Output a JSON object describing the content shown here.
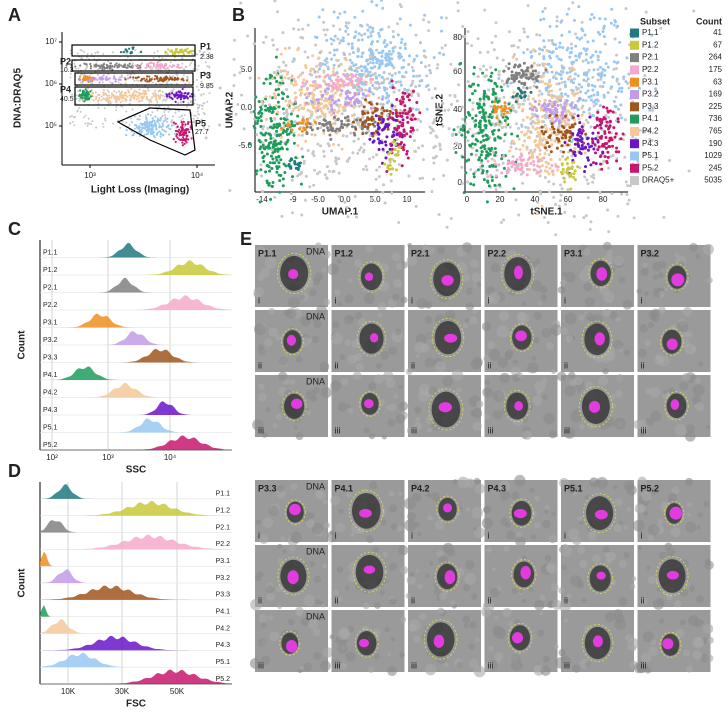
{
  "panelA": {
    "label": "A",
    "ylabel": "DNA:DRAQ5",
    "xlabel": "Light Loss (Imaging)",
    "yticks": [
      "10⁷",
      "10⁶",
      "10⁵"
    ],
    "xticks": [
      "10³",
      "10⁴"
    ],
    "gates": [
      {
        "name": "P1",
        "value": "2.38"
      },
      {
        "name": "P2",
        "value": "10.3"
      },
      {
        "name": "P3",
        "value": "9.85"
      },
      {
        "name": "P4",
        "value": "40.5"
      },
      {
        "name": "P5",
        "value": "27.7"
      }
    ]
  },
  "panelB": {
    "label": "B",
    "umap": {
      "ylabel": "UMAP.2",
      "xlabel": "UMAP.1",
      "yticks": [
        "5.0",
        "0.0",
        "-5.0"
      ],
      "xticks": [
        "-14",
        "-9",
        "-5.0",
        "0.0",
        "5.0",
        "10"
      ]
    },
    "tsne": {
      "ylabel": "tSNE.2",
      "xlabel": "tSNE.1",
      "yticks": [
        "80",
        "60",
        "40",
        "20",
        "0"
      ],
      "xticks": [
        "0",
        "20",
        "40",
        "60",
        "80"
      ]
    },
    "legend": {
      "header": [
        "Subset",
        "Count"
      ],
      "rows": [
        {
          "name": "P1.1",
          "count": "41",
          "color": "#1f7a80"
        },
        {
          "name": "P1.2",
          "count": "67",
          "color": "#c9c93a"
        },
        {
          "name": "P2.1",
          "count": "264",
          "color": "#808080"
        },
        {
          "name": "P2.2",
          "count": "175",
          "color": "#f4a9cc"
        },
        {
          "name": "P3.1",
          "count": "63",
          "color": "#ef8f20"
        },
        {
          "name": "P3.2",
          "count": "169",
          "color": "#c29ce8"
        },
        {
          "name": "P3.3",
          "count": "225",
          "color": "#a0561e"
        },
        {
          "name": "P4.1",
          "count": "736",
          "color": "#1f9c5c"
        },
        {
          "name": "P4.2",
          "count": "765",
          "color": "#f5c898"
        },
        {
          "name": "P4.3",
          "count": "190",
          "color": "#6a16c8"
        },
        {
          "name": "P5.1",
          "count": "1029",
          "color": "#98c8f2"
        },
        {
          "name": "P5.2",
          "count": "245",
          "color": "#c8166e"
        },
        {
          "name": "DRAQ5+",
          "count": "5035",
          "color": "#c8c8c8"
        }
      ]
    }
  },
  "panelC": {
    "label": "C",
    "ylabel": "Count",
    "xlabel": "SSC",
    "xticks": [
      "10²",
      "10³",
      "10⁴"
    ]
  },
  "panelD": {
    "label": "D",
    "ylabel": "Count",
    "xlabel": "FSC",
    "xticks": [
      "10K",
      "30K",
      "50K"
    ]
  },
  "panelE": {
    "label": "E",
    "stain": "DNA",
    "top": [
      "P1.1",
      "P1.2",
      "P2.1",
      "P2.2",
      "P3.1",
      "P3.2"
    ],
    "bottom": [
      "P3.3",
      "P4.1",
      "P4.2",
      "P4.3",
      "P5.1",
      "P5.2"
    ],
    "rows": [
      "i",
      "ii",
      "iii"
    ]
  }
}
